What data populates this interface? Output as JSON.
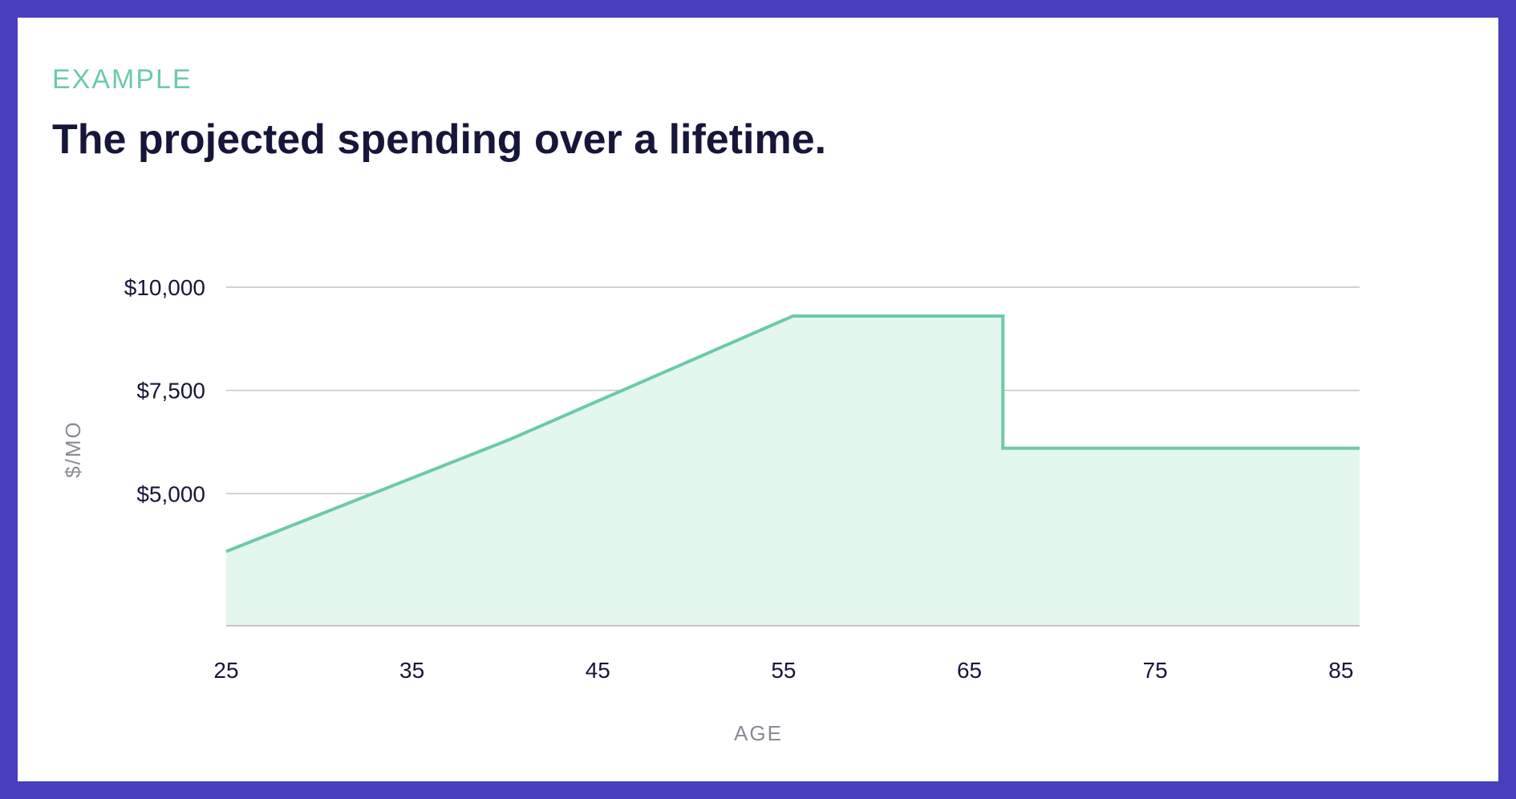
{
  "header": {
    "eyebrow": "EXAMPLE",
    "title": "The projected spending over a lifetime."
  },
  "colors": {
    "frame": "#483fbd",
    "accent": "#6ccaa6",
    "fill": "#e3f7ef",
    "grid": "#c4c4c8",
    "text": "#16163a",
    "muted": "#8a8a96"
  },
  "chart_data": {
    "type": "area",
    "title": "The projected spending over a lifetime.",
    "xlabel": "AGE",
    "ylabel": "$/MO",
    "xlim": [
      25,
      86
    ],
    "ylim": [
      1800,
      10000
    ],
    "x_ticks": [
      25,
      35,
      45,
      55,
      65,
      75,
      85
    ],
    "x_tick_labels": [
      "25",
      "35",
      "45",
      "55",
      "65",
      "75",
      "85"
    ],
    "y_ticks": [
      5000,
      7500,
      10000
    ],
    "y_tick_labels": [
      "$5,000",
      "$7,500",
      "$10,000"
    ],
    "grid": true,
    "series": [
      {
        "x": [
          25,
          40.2,
          55.5,
          66.8,
          66.8,
          86
        ],
        "y": [
          3600,
          6300,
          9300,
          9300,
          6100,
          6100
        ]
      }
    ]
  }
}
